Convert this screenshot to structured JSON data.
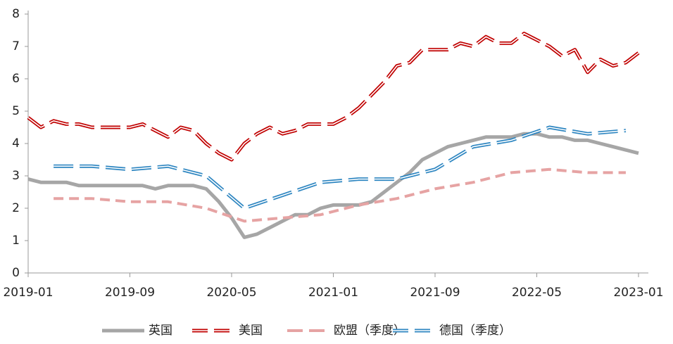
{
  "chart_data": {
    "type": "line",
    "xlim": [
      "2019-01",
      "2023-01"
    ],
    "xticks": [
      "2019-01",
      "2019-09",
      "2020-05",
      "2021-01",
      "2021-09",
      "2022-05",
      "2023-01"
    ],
    "ylim": [
      0,
      8
    ],
    "yticks": [
      0,
      1,
      2,
      3,
      4,
      5,
      6,
      7,
      8
    ],
    "legend": "bottom",
    "series": [
      {
        "name": "英国",
        "color": "#a6a6a6",
        "style": "solid",
        "x": [
          "2019-01",
          "2019-02",
          "2019-03",
          "2019-04",
          "2019-05",
          "2019-06",
          "2019-07",
          "2019-08",
          "2019-09",
          "2019-10",
          "2019-11",
          "2019-12",
          "2020-01",
          "2020-02",
          "2020-03",
          "2020-04",
          "2020-05",
          "2020-06",
          "2020-07",
          "2020-08",
          "2020-09",
          "2020-10",
          "2020-11",
          "2020-12",
          "2021-01",
          "2021-02",
          "2021-03",
          "2021-04",
          "2021-05",
          "2021-06",
          "2021-07",
          "2021-08",
          "2021-09",
          "2021-10",
          "2021-11",
          "2021-12",
          "2022-01",
          "2022-02",
          "2022-03",
          "2022-04",
          "2022-05",
          "2022-06",
          "2022-07",
          "2022-08",
          "2022-09",
          "2022-10",
          "2022-11",
          "2022-12",
          "2023-01"
        ],
        "values": [
          2.9,
          2.8,
          2.8,
          2.8,
          2.7,
          2.7,
          2.7,
          2.7,
          2.7,
          2.7,
          2.6,
          2.7,
          2.7,
          2.7,
          2.6,
          2.2,
          1.7,
          1.1,
          1.2,
          1.4,
          1.6,
          1.8,
          1.8,
          2.0,
          2.1,
          2.1,
          2.1,
          2.2,
          2.5,
          2.8,
          3.1,
          3.5,
          3.7,
          3.9,
          4.0,
          4.1,
          4.2,
          4.2,
          4.2,
          4.3,
          4.3,
          4.2,
          4.2,
          4.1,
          4.1,
          4.0,
          3.9,
          3.8,
          3.7
        ]
      },
      {
        "name": "美国",
        "color": "#c00000",
        "style": "double-dash",
        "x": [
          "2019-01",
          "2019-02",
          "2019-03",
          "2019-04",
          "2019-05",
          "2019-06",
          "2019-07",
          "2019-08",
          "2019-09",
          "2019-10",
          "2019-11",
          "2019-12",
          "2020-01",
          "2020-02",
          "2020-03",
          "2020-04",
          "2020-05",
          "2020-06",
          "2020-07",
          "2020-08",
          "2020-09",
          "2020-10",
          "2020-11",
          "2020-12",
          "2021-01",
          "2021-02",
          "2021-03",
          "2021-04",
          "2021-05",
          "2021-06",
          "2021-07",
          "2021-08",
          "2021-09",
          "2021-10",
          "2021-11",
          "2021-12",
          "2022-01",
          "2022-02",
          "2022-03",
          "2022-04",
          "2022-05",
          "2022-06",
          "2022-07",
          "2022-08",
          "2022-09",
          "2022-10",
          "2022-11",
          "2022-12",
          "2023-01"
        ],
        "values": [
          4.8,
          4.5,
          4.7,
          4.6,
          4.6,
          4.5,
          4.5,
          4.5,
          4.5,
          4.6,
          4.4,
          4.2,
          4.5,
          4.4,
          4.0,
          3.7,
          3.5,
          4.0,
          4.3,
          4.5,
          4.3,
          4.4,
          4.6,
          4.6,
          4.6,
          4.8,
          5.1,
          5.5,
          5.9,
          6.4,
          6.5,
          6.9,
          6.9,
          6.9,
          7.1,
          7.0,
          7.3,
          7.1,
          7.1,
          7.4,
          7.2,
          7.0,
          6.7,
          6.9,
          6.2,
          6.6,
          6.4,
          6.5,
          6.8
        ]
      },
      {
        "name": "欧盟（季度）",
        "color": "#e6a3a3",
        "style": "dash",
        "x": [
          "2019-03",
          "2019-06",
          "2019-09",
          "2019-12",
          "2020-03",
          "2020-06",
          "2020-09",
          "2020-12",
          "2021-03",
          "2021-06",
          "2021-09",
          "2021-12",
          "2022-03",
          "2022-06",
          "2022-09",
          "2022-12"
        ],
        "values": [
          2.3,
          2.3,
          2.2,
          2.2,
          2.0,
          1.6,
          1.7,
          1.8,
          2.1,
          2.3,
          2.6,
          2.8,
          3.1,
          3.2,
          3.1,
          3.1
        ]
      },
      {
        "name": "德国（季度）",
        "color": "#2e86c1",
        "style": "double-dash",
        "x": [
          "2019-03",
          "2019-06",
          "2019-09",
          "2019-12",
          "2020-03",
          "2020-06",
          "2020-09",
          "2020-12",
          "2021-03",
          "2021-06",
          "2021-09",
          "2021-12",
          "2022-03",
          "2022-06",
          "2022-09",
          "2022-12"
        ],
        "values": [
          3.3,
          3.3,
          3.2,
          3.3,
          3.0,
          2.0,
          2.4,
          2.8,
          2.9,
          2.9,
          3.2,
          3.9,
          4.1,
          4.5,
          4.3,
          4.4
        ]
      }
    ]
  }
}
